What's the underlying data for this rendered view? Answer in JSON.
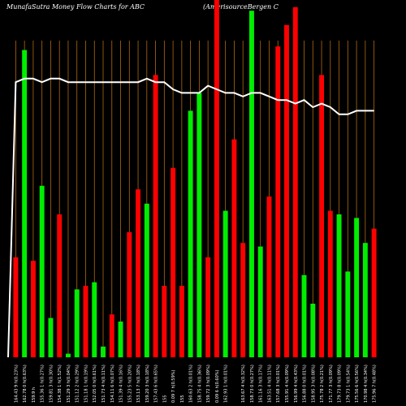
{
  "header": {
    "title": "MunafaSutra  Money Flow  Charts for ABC",
    "subtitle": "(AmerisourceBergen  C"
  },
  "chart_data": {
    "type": "bar",
    "ylim": [
      0,
      100
    ],
    "colors": {
      "up": "#00ee00",
      "down": "#ff0000",
      "grid": "#b06a10",
      "line": "#ffffff",
      "background": "#000000"
    },
    "categories": [
      "164.43 9 h(0.23%)",
      "162.78 0 h(0.63%)",
      "159.9 h",
      "155.36 1 h(0.27%)",
      "159.81 3 h(0.30%)",
      "154.38 1 h(1.52%)",
      "151.29 3 h(0.04%)",
      "151.12 2 h(0.29%)",
      "151.18 1 h(0.19%)",
      "152.05 0 h(0.61%)",
      "151.73 4 h(0.11%)",
      "154.11 6 h(0.07%)",
      "151.39 4 h(0.16%)",
      "155.23 5 h(0.20%)",
      "153.13 7 h(0.18%)",
      "159.20 3 h(0.18%)",
      "157.43 6 h(0.65%)",
      "155",
      "0.09 7 h(0.59%)",
      "155",
      "160.63 2 h(0.01%)",
      "158.75 4 h(0.36%)",
      "159.72 3 h(0.09%)",
      "0.09 6 h(0.60%)",
      "162.93 1 h(0.01%)",
      "",
      "163.67 4 h(0.32%)",
      "158.73 0 h(0.27%)",
      "161.16 3 h(0.17%)",
      "163.51 4 h(0.11%)",
      "157.68 3 h(0.01%)",
      "155.91 4 h(0.09%)",
      "156.99 4 h(0.43%)",
      "156.88 0 h(0.01%)",
      "158.95 3 h(0.08%)",
      "175.78 2 h(0.21%)",
      "171.77 3 h(0.09%)",
      "179.73 8 h(0.09%)",
      "179.73 1 h(0.54%)",
      "175.56 6 h(0.56%)",
      "170.98 4 h(0.34%)",
      "175.96 7 h(0.48%)"
    ],
    "series": [
      {
        "role": "bars",
        "values": [
          28,
          86,
          27,
          48,
          11,
          40,
          1,
          19,
          20,
          21,
          3,
          12,
          10,
          35,
          47,
          43,
          79,
          20,
          53,
          20,
          69,
          74,
          28,
          100,
          41,
          61,
          32,
          97,
          31,
          45,
          87,
          93,
          98,
          23,
          15,
          79,
          41,
          40,
          24,
          39,
          32,
          36
        ],
        "direction": [
          "down",
          "up",
          "down",
          "up",
          "up",
          "down",
          "up",
          "up",
          "down",
          "up",
          "up",
          "down",
          "up",
          "down",
          "down",
          "up",
          "down",
          "down",
          "down",
          "down",
          "up",
          "up",
          "down",
          "down",
          "up",
          "down",
          "down",
          "up",
          "up",
          "down",
          "down",
          "down",
          "down",
          "up",
          "up",
          "down",
          "down",
          "up",
          "up",
          "up",
          "up",
          "down"
        ]
      },
      {
        "role": "line",
        "values": [
          77,
          78,
          78,
          77,
          78,
          78,
          77,
          77,
          77,
          77,
          77,
          77,
          77,
          77,
          77,
          78,
          77,
          77,
          75,
          74,
          74,
          74,
          76,
          75,
          74,
          74,
          73,
          74,
          74,
          73,
          72,
          72,
          71,
          72,
          70,
          71,
          70,
          68,
          68,
          69,
          69,
          69
        ]
      }
    ]
  }
}
